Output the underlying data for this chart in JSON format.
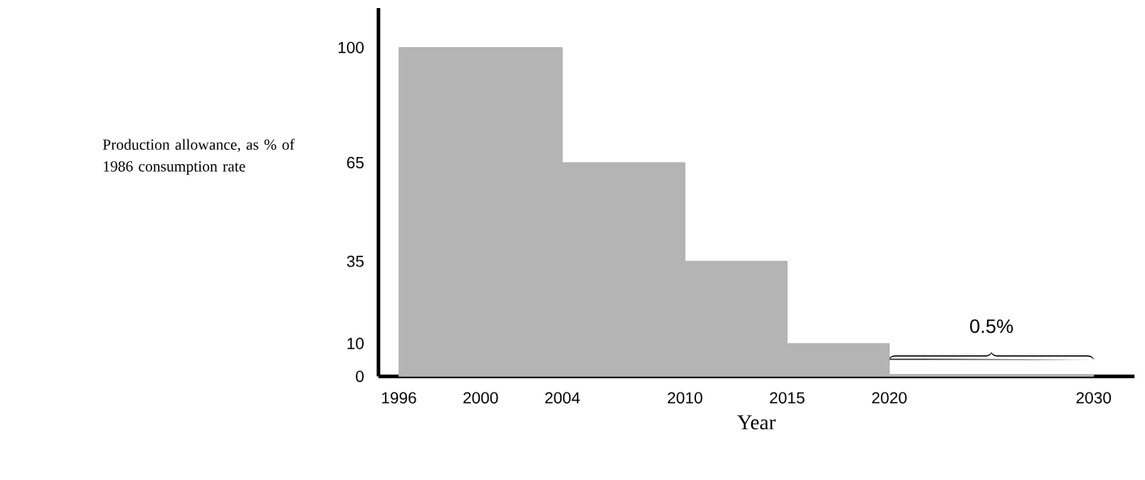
{
  "chart_data": {
    "type": "area",
    "xlabel": "Year",
    "ylabel": "Production allowance, as % of 1986 consumption rate",
    "x": [
      1996,
      2004,
      2004,
      2010,
      2010,
      2015,
      2015,
      2020,
      2020,
      2030
    ],
    "values": [
      100,
      100,
      65,
      65,
      35,
      35,
      10,
      10,
      0.5,
      0.5
    ],
    "color": "#b4b4b4",
    "xlim": [
      1995,
      2032
    ],
    "ylim": [
      0,
      112
    ],
    "xticks": [
      1996,
      2000,
      2004,
      2010,
      2015,
      2020,
      2030
    ],
    "yticks": [
      0,
      10,
      35,
      65,
      100
    ],
    "annotations": [
      "0.5%"
    ],
    "grid": false
  }
}
